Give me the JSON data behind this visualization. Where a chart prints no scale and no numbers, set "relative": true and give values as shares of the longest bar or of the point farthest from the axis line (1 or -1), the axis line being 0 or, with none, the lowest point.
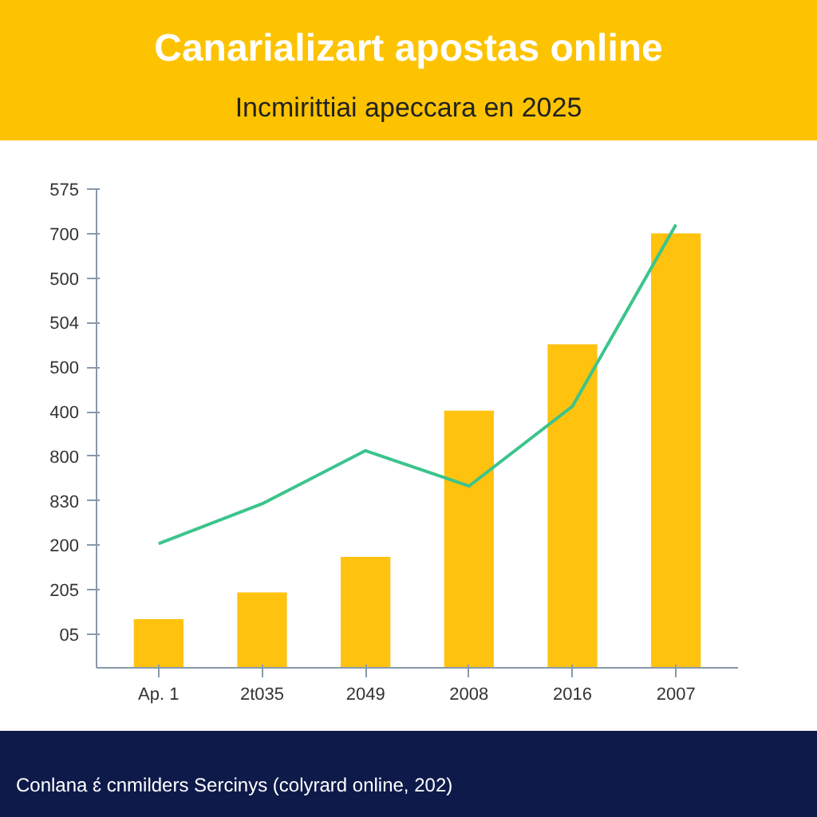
{
  "chart_data": {
    "type": "bar",
    "title": "Canarializart apostas online",
    "subtitle": "Incmirittiai apeccara en 2025",
    "annotations": [
      "575",
      "700",
      "500",
      "504",
      "500",
      "400",
      "800",
      "830",
      "200",
      "205",
      "05",
      "Conlana ɛ́ cnmilders Sercinys (colyrard online, 202)"
    ],
    "categories": [
      "Ap. 1",
      "2t035",
      "2049",
      "2008",
      "2016",
      "2007"
    ],
    "relative": true,
    "series": [
      {
        "color": "#ffc20e",
        "values": [
          0.11,
          0.17,
          0.25,
          0.58,
          0.73,
          0.98
        ]
      },
      {
        "type": "line",
        "color": "#3cc48c",
        "values": [
          0.28,
          0.37,
          0.49,
          0.41,
          0.59,
          1.0
        ]
      }
    ],
    "line_style": "solid"
  }
}
